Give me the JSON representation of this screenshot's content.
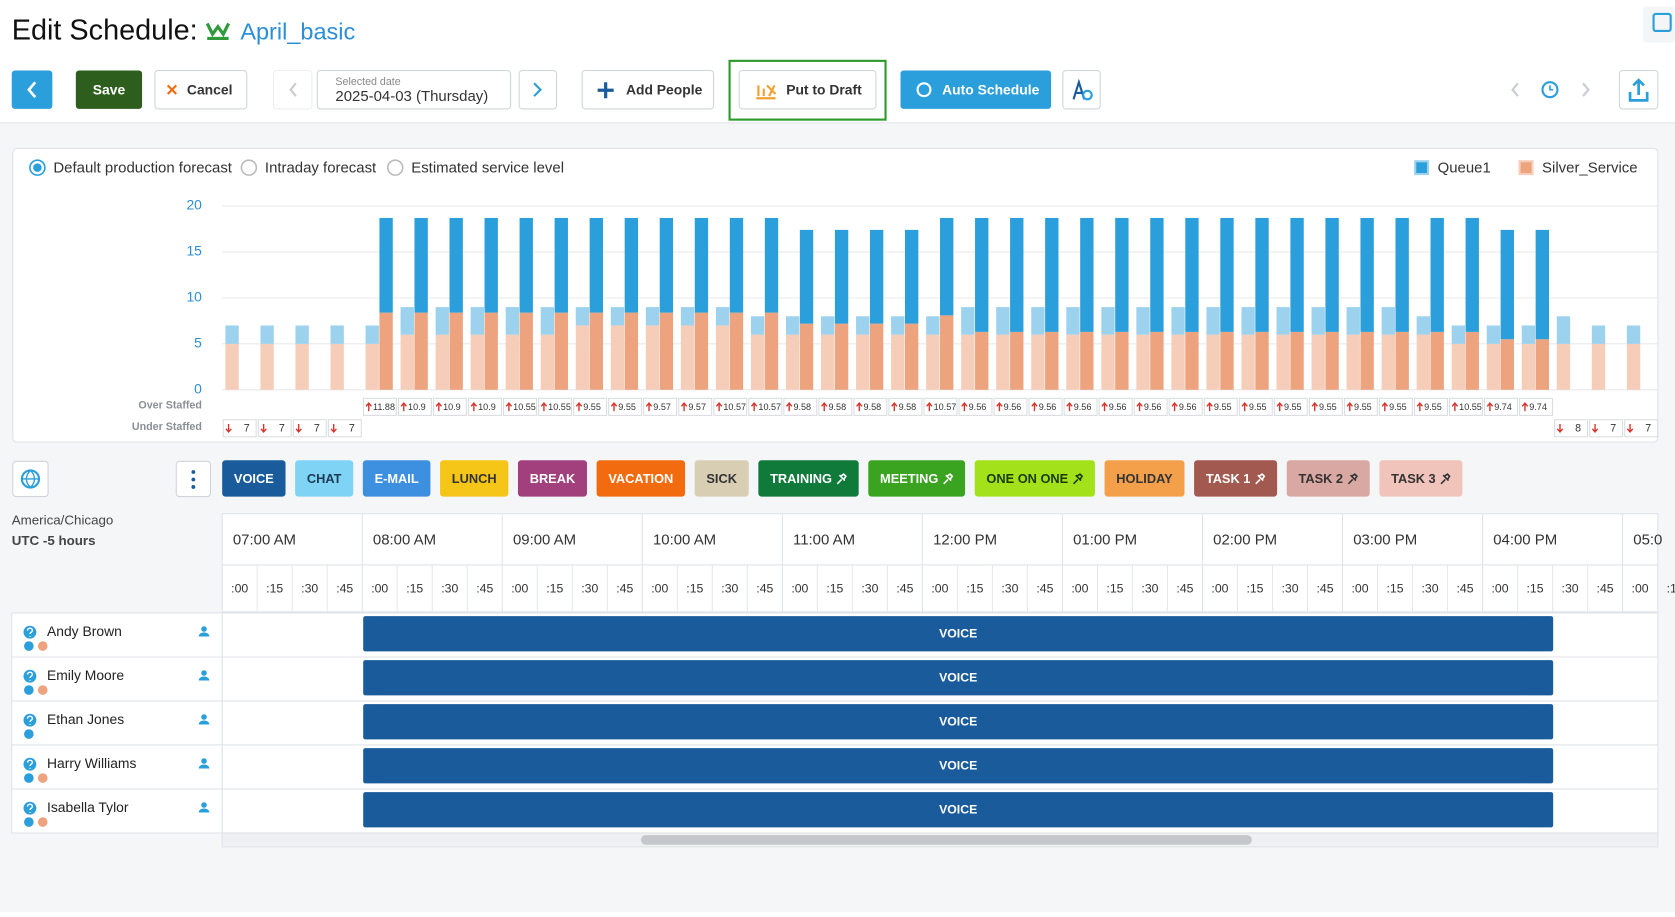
{
  "header": {
    "title": "Edit Schedule:",
    "schedule_name": "April_basic"
  },
  "toolbar": {
    "save": "Save",
    "cancel": "Cancel",
    "date_caption": "Selected date",
    "date": "2025-04-03 (Thursday)",
    "add_people": "Add People",
    "put_to_draft": "Put to Draft",
    "auto_schedule": "Auto Schedule"
  },
  "forecast_options": {
    "items": [
      "Default production forecast",
      "Intraday forecast",
      "Estimated service level"
    ],
    "selected": 0
  },
  "chart_data": {
    "type": "bar",
    "stacked": true,
    "grid": true,
    "legend": "top-right",
    "categories": [
      null,
      null,
      null,
      null,
      null,
      null,
      null,
      null,
      null,
      null,
      null,
      null,
      null,
      null,
      null,
      null,
      null,
      null,
      null,
      null,
      null,
      null,
      null,
      null,
      null,
      null,
      null,
      null,
      null,
      null,
      null,
      null,
      null,
      null,
      null,
      null,
      null,
      null,
      null,
      null,
      null
    ],
    "ylim": [
      0,
      21.5
    ],
    "yticks": [
      0,
      5,
      10,
      15,
      20
    ],
    "series": [
      {
        "name": "Queue1",
        "color": "#2b9fdb",
        "forecast_color": "#9dd2ef",
        "forecast_values": [
          2,
          2,
          2,
          2,
          2,
          3,
          3,
          3,
          3,
          3,
          2,
          2,
          2,
          2,
          2,
          2,
          2,
          2,
          2,
          2,
          2,
          3,
          3,
          3,
          3,
          3,
          3,
          3,
          3,
          3,
          3,
          3,
          3,
          3,
          2,
          2,
          2,
          2,
          3,
          2,
          2
        ],
        "values": [
          null,
          null,
          null,
          null,
          10.3,
          10.3,
          10.3,
          10.3,
          10.3,
          10.3,
          10.3,
          10.3,
          10.3,
          10.3,
          10.3,
          10.3,
          10.2,
          10.2,
          10.2,
          10.2,
          10.6,
          12.4,
          12.4,
          12.4,
          12.4,
          12.4,
          12.4,
          12.4,
          12.4,
          12.4,
          12.4,
          12.4,
          12.4,
          12.4,
          12.4,
          12.4,
          11.9,
          11.9,
          null,
          null,
          null
        ]
      },
      {
        "name": "Silver_Service",
        "color": "#eca37e",
        "forecast_color": "#f6cdb8",
        "forecast_values": [
          5,
          5,
          5,
          5,
          5,
          6,
          6,
          6,
          6,
          6,
          7,
          7,
          7,
          7,
          7,
          6,
          6,
          6,
          6,
          6,
          6,
          6,
          6,
          6,
          6,
          6,
          6,
          6,
          6,
          6,
          6,
          6,
          6,
          6,
          6,
          5,
          5,
          5,
          5,
          5,
          5
        ],
        "values": [
          null,
          null,
          null,
          null,
          8.4,
          8.4,
          8.4,
          8.4,
          8.4,
          8.4,
          8.4,
          8.4,
          8.4,
          8.4,
          8.4,
          8.4,
          7.2,
          7.2,
          7.2,
          7.2,
          8.1,
          6.3,
          6.3,
          6.3,
          6.3,
          6.3,
          6.3,
          6.3,
          6.3,
          6.3,
          6.3,
          6.3,
          6.3,
          6.3,
          6.3,
          6.3,
          5.5,
          5.5,
          null,
          null,
          null
        ]
      }
    ],
    "over_staffed": {
      "label": "Over Staffed",
      "values": [
        null,
        null,
        null,
        null,
        11.88,
        10.9,
        10.9,
        10.9,
        10.55,
        10.55,
        9.55,
        9.55,
        9.57,
        9.57,
        10.57,
        10.57,
        9.58,
        9.58,
        9.58,
        9.58,
        10.57,
        9.56,
        9.56,
        9.56,
        9.56,
        9.56,
        9.56,
        9.56,
        9.55,
        9.55,
        9.55,
        9.55,
        9.55,
        9.55,
        9.55,
        10.55,
        9.74,
        9.74,
        null,
        null,
        null
      ]
    },
    "under_staffed": {
      "label": "Under Staffed",
      "values": [
        7,
        7,
        7,
        7,
        null,
        null,
        null,
        null,
        null,
        null,
        null,
        null,
        null,
        null,
        null,
        null,
        null,
        null,
        null,
        null,
        null,
        null,
        null,
        null,
        null,
        null,
        null,
        null,
        null,
        null,
        null,
        null,
        null,
        null,
        null,
        null,
        null,
        null,
        8,
        7,
        7
      ]
    }
  },
  "activities": [
    {
      "label": "VOICE",
      "color": "#1a5b9c",
      "text_color": "#ffffff",
      "pinned": false
    },
    {
      "label": "CHAT",
      "color": "#7fd4f5",
      "text_color": "#1d3b55",
      "pinned": false
    },
    {
      "label": "E-MAIL",
      "color": "#3d8fe0",
      "text_color": "#ffffff",
      "pinned": false
    },
    {
      "label": "LUNCH",
      "color": "#f5c518",
      "text_color": "#333333",
      "pinned": false
    },
    {
      "label": "BREAK",
      "color": "#a2407e",
      "text_color": "#ffffff",
      "pinned": false
    },
    {
      "label": "VACATION",
      "color": "#f26b0f",
      "text_color": "#ffffff",
      "pinned": false
    },
    {
      "label": "SICK",
      "color": "#d8ceb4",
      "text_color": "#333333",
      "pinned": false
    },
    {
      "label": "TRAINING",
      "color": "#0f7a3a",
      "text_color": "#ffffff",
      "pinned": true
    },
    {
      "label": "MEETING",
      "color": "#3aa31f",
      "text_color": "#ffffff",
      "pinned": true
    },
    {
      "label": "ONE ON ONE",
      "color": "#a3e21b",
      "text_color": "#1c3a00",
      "pinned": true
    },
    {
      "label": "HOLIDAY",
      "color": "#f4a04a",
      "text_color": "#333333",
      "pinned": false
    },
    {
      "label": "TASK 1",
      "color": "#a2594f",
      "text_color": "#ffffff",
      "pinned": true
    },
    {
      "label": "TASK 2",
      "color": "#d9a8a3",
      "text_color": "#333333",
      "pinned": true
    },
    {
      "label": "TASK 3",
      "color": "#f0c3bb",
      "text_color": "#333333",
      "pinned": true
    }
  ],
  "schedule": {
    "timezone": "America/Chicago",
    "utc_offset": "UTC -5 hours",
    "hours": [
      "07:00 AM",
      "08:00 AM",
      "09:00 AM",
      "10:00 AM",
      "11:00 AM",
      "12:00 PM",
      "01:00 PM",
      "02:00 PM",
      "03:00 PM",
      "04:00 PM",
      "05:0"
    ],
    "minutes": [
      ":00",
      ":15",
      ":30",
      ":45"
    ],
    "people": [
      {
        "name": "Andy Brown",
        "skills": [
          "#2b9fdb",
          "#eca37e"
        ],
        "activity": "VOICE"
      },
      {
        "name": "Emily Moore",
        "skills": [
          "#2b9fdb",
          "#eca37e"
        ],
        "activity": "VOICE"
      },
      {
        "name": "Ethan Jones",
        "skills": [
          "#2b9fdb"
        ],
        "activity": "VOICE"
      },
      {
        "name": "Harry Williams",
        "skills": [
          "#2b9fdb",
          "#eca37e"
        ],
        "activity": "VOICE"
      },
      {
        "name": "Isabella Tylor",
        "skills": [
          "#2b9fdb",
          "#eca37e"
        ],
        "activity": "VOICE"
      }
    ]
  }
}
